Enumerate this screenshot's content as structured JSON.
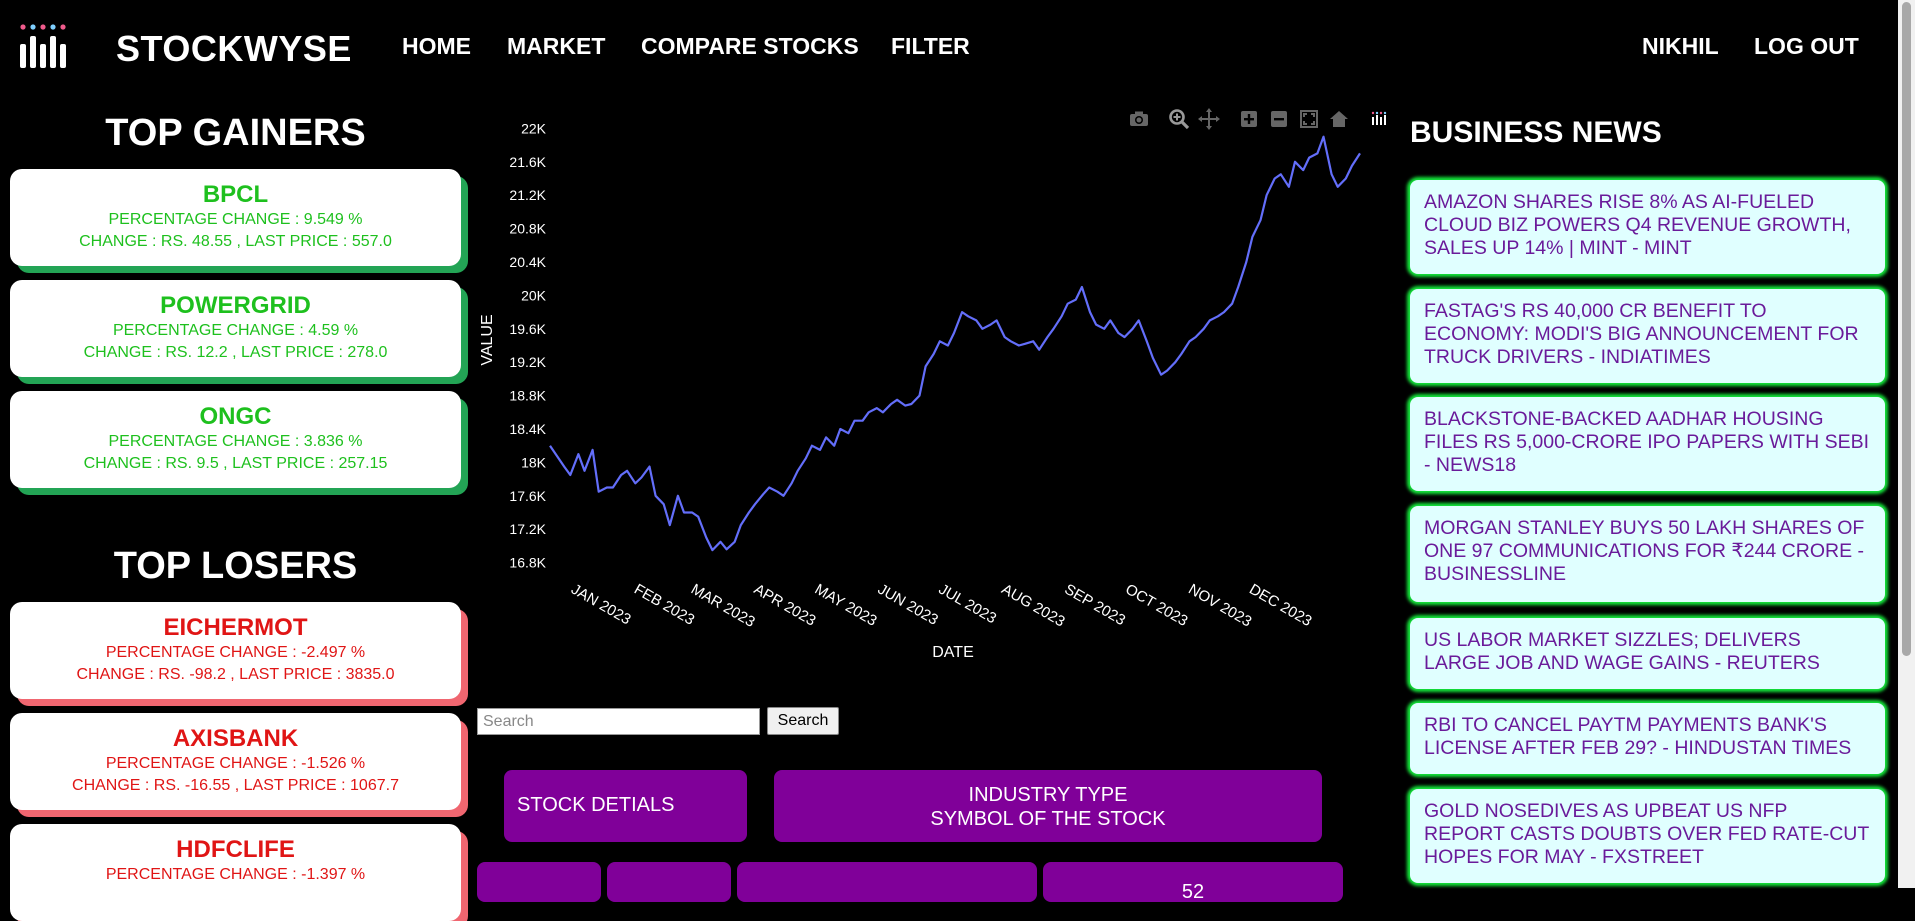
{
  "nav": {
    "brand": "STOCKWYSE",
    "links": [
      "HOME",
      "MARKET",
      "COMPARE STOCKS",
      "FILTER"
    ],
    "user": "NIKHIL",
    "logout": "LOG OUT"
  },
  "gainers": {
    "title": "TOP GAINERS",
    "items": [
      {
        "symbol": "BPCL",
        "pct": "PERCENTAGE CHANGE : 9.549 %",
        "change": "CHANGE : RS. 48.55 , LAST PRICE : 557.0"
      },
      {
        "symbol": "POWERGRID",
        "pct": "PERCENTAGE CHANGE : 4.59 %",
        "change": "CHANGE : RS. 12.2 , LAST PRICE : 278.0"
      },
      {
        "symbol": "ONGC",
        "pct": "PERCENTAGE CHANGE : 3.836 %",
        "change": "CHANGE : RS. 9.5 , LAST PRICE : 257.15"
      }
    ]
  },
  "losers": {
    "title": "TOP LOSERS",
    "items": [
      {
        "symbol": "EICHERMOT",
        "pct": "PERCENTAGE CHANGE : -2.497 %",
        "change": "CHANGE : RS. -98.2 , LAST PRICE : 3835.0"
      },
      {
        "symbol": "AXISBANK",
        "pct": "PERCENTAGE CHANGE : -1.526 %",
        "change": "CHANGE : RS. -16.55 , LAST PRICE : 1067.7"
      },
      {
        "symbol": "HDFCLIFE",
        "pct": "PERCENTAGE CHANGE : -1.397 %",
        "change": ""
      }
    ]
  },
  "chart_data": {
    "type": "line",
    "title": "",
    "xlabel": "DATE",
    "ylabel": "VALUE",
    "y_ticks": [
      "16.8K",
      "17.2K",
      "17.6K",
      "18K",
      "18.4K",
      "18.8K",
      "19.2K",
      "19.6K",
      "20K",
      "20.4K",
      "20.8K",
      "21.2K",
      "21.6K",
      "22K"
    ],
    "y_tick_values": [
      16800,
      17200,
      17600,
      18000,
      18400,
      18800,
      19200,
      19600,
      20000,
      20400,
      20800,
      21200,
      21600,
      22000
    ],
    "ylim": [
      16700,
      22100
    ],
    "x_ticks": [
      "JAN 2023",
      "FEB 2023",
      "MAR 2023",
      "APR 2023",
      "MAY 2023",
      "JUN 2023",
      "JUL 2023",
      "AUG 2023",
      "SEP 2023",
      "OCT 2023",
      "NOV 2023",
      "DEC 2023"
    ],
    "line_color": "#636efa",
    "grid": false,
    "series": [
      {
        "x": [
          "2022-12-26",
          "2023-01-02",
          "2023-01-05",
          "2023-01-09",
          "2023-01-12",
          "2023-01-16",
          "2023-01-19",
          "2023-01-23",
          "2023-01-26",
          "2023-01-30",
          "2023-02-02",
          "2023-02-06",
          "2023-02-09",
          "2023-02-13",
          "2023-02-16",
          "2023-02-20",
          "2023-02-23",
          "2023-02-27",
          "2023-03-02",
          "2023-03-06",
          "2023-03-09",
          "2023-03-13",
          "2023-03-16",
          "2023-03-20",
          "2023-03-23",
          "2023-03-27",
          "2023-03-30",
          "2023-04-03",
          "2023-04-06",
          "2023-04-10",
          "2023-04-13",
          "2023-04-17",
          "2023-04-20",
          "2023-04-24",
          "2023-04-27",
          "2023-05-01",
          "2023-05-04",
          "2023-05-08",
          "2023-05-11",
          "2023-05-15",
          "2023-05-18",
          "2023-05-22",
          "2023-05-25",
          "2023-05-29",
          "2023-06-01",
          "2023-06-05",
          "2023-06-08",
          "2023-06-12",
          "2023-06-15",
          "2023-06-19",
          "2023-06-22",
          "2023-06-26",
          "2023-06-29",
          "2023-07-03",
          "2023-07-06",
          "2023-07-10",
          "2023-07-13",
          "2023-07-17",
          "2023-07-20",
          "2023-07-24",
          "2023-07-27",
          "2023-07-31",
          "2023-08-03",
          "2023-08-07",
          "2023-08-10",
          "2023-08-14",
          "2023-08-17",
          "2023-08-21",
          "2023-08-24",
          "2023-08-28",
          "2023-08-31",
          "2023-09-04",
          "2023-09-07",
          "2023-09-11",
          "2023-09-14",
          "2023-09-18",
          "2023-09-21",
          "2023-09-25",
          "2023-09-28",
          "2023-10-02",
          "2023-10-05",
          "2023-10-09",
          "2023-10-12",
          "2023-10-16",
          "2023-10-19",
          "2023-10-23",
          "2023-10-26",
          "2023-10-30",
          "2023-11-02",
          "2023-11-06",
          "2023-11-09",
          "2023-11-13",
          "2023-11-16",
          "2023-11-20",
          "2023-11-23",
          "2023-11-27",
          "2023-11-30",
          "2023-12-04",
          "2023-12-07",
          "2023-12-11",
          "2023-12-14",
          "2023-12-18",
          "2023-12-21",
          "2023-12-25",
          "2023-12-28",
          "2024-01-01",
          "2024-01-04",
          "2024-01-08",
          "2024-01-11",
          "2024-01-15",
          "2024-01-18",
          "2024-01-22",
          "2024-01-25",
          "2024-01-29"
        ],
        "y": [
          18200,
          17950,
          17850,
          18100,
          17900,
          18150,
          17650,
          17700,
          17700,
          17850,
          17900,
          17750,
          17820,
          17950,
          17600,
          17500,
          17250,
          17600,
          17400,
          17400,
          17350,
          17100,
          16950,
          17050,
          16960,
          17050,
          17250,
          17400,
          17500,
          17620,
          17700,
          17650,
          17600,
          17750,
          17900,
          18050,
          18200,
          18150,
          18300,
          18200,
          18400,
          18350,
          18500,
          18500,
          18600,
          18650,
          18600,
          18700,
          18750,
          18680,
          18700,
          18800,
          19150,
          19300,
          19450,
          19400,
          19550,
          19800,
          19750,
          19700,
          19600,
          19650,
          19700,
          19500,
          19450,
          19400,
          19420,
          19450,
          19350,
          19500,
          19600,
          19750,
          19900,
          19950,
          20100,
          19800,
          19650,
          19600,
          19700,
          19550,
          19500,
          19600,
          19700,
          19450,
          19250,
          19050,
          19100,
          19200,
          19300,
          19450,
          19500,
          19600,
          19700,
          19750,
          19800,
          19900,
          20100,
          20400,
          20700,
          20900,
          21200,
          21400,
          21450,
          21300,
          21600,
          21500,
          21650,
          21700,
          21900,
          21450,
          21300,
          21400,
          21550,
          21700
        ]
      }
    ]
  },
  "search": {
    "placeholder": "Search",
    "button": "Search"
  },
  "stock_details": {
    "label": "STOCK DETIALS",
    "industry_line1": "INDUSTRY TYPE",
    "industry_line2": "SYMBOL OF THE STOCK",
    "partial_value": "52"
  },
  "news": {
    "title": "BUSINESS NEWS",
    "items": [
      "AMAZON SHARES RISE 8% AS AI-FUELED CLOUD BIZ POWERS Q4 REVENUE GROWTH, SALES UP 14% | MINT - MINT",
      "FASTAG'S RS 40,000 CR BENEFIT TO ECONOMY: MODI'S BIG ANNOUNCEMENT FOR TRUCK DRIVERS - INDIATIMES",
      "BLACKSTONE-BACKED AADHAR HOUSING FILES RS 5,000-CRORE IPO PAPERS WITH SEBI - NEWS18",
      "MORGAN STANLEY BUYS 50 LAKH SHARES OF ONE 97 COMMUNICATIONS FOR ₹244 CRORE - BUSINESSLINE",
      "US LABOR MARKET SIZZLES; DELIVERS LARGE JOB AND WAGE GAINS - REUTERS",
      "RBI TO CANCEL PAYTM PAYMENTS BANK'S LICENSE AFTER FEB 29? - HINDUSTAN TIMES",
      "GOLD NOSEDIVES AS UPBEAT US NFP REPORT CASTS DOUBTS OVER FED RATE-CUT HOPES FOR MAY - FXSTREET"
    ]
  },
  "colors": {
    "accent_purple": "#800099",
    "gain": "#1ec01e",
    "loss": "#e01515",
    "news_bg": "#e0ffff",
    "news_text": "#6a1b9a"
  }
}
